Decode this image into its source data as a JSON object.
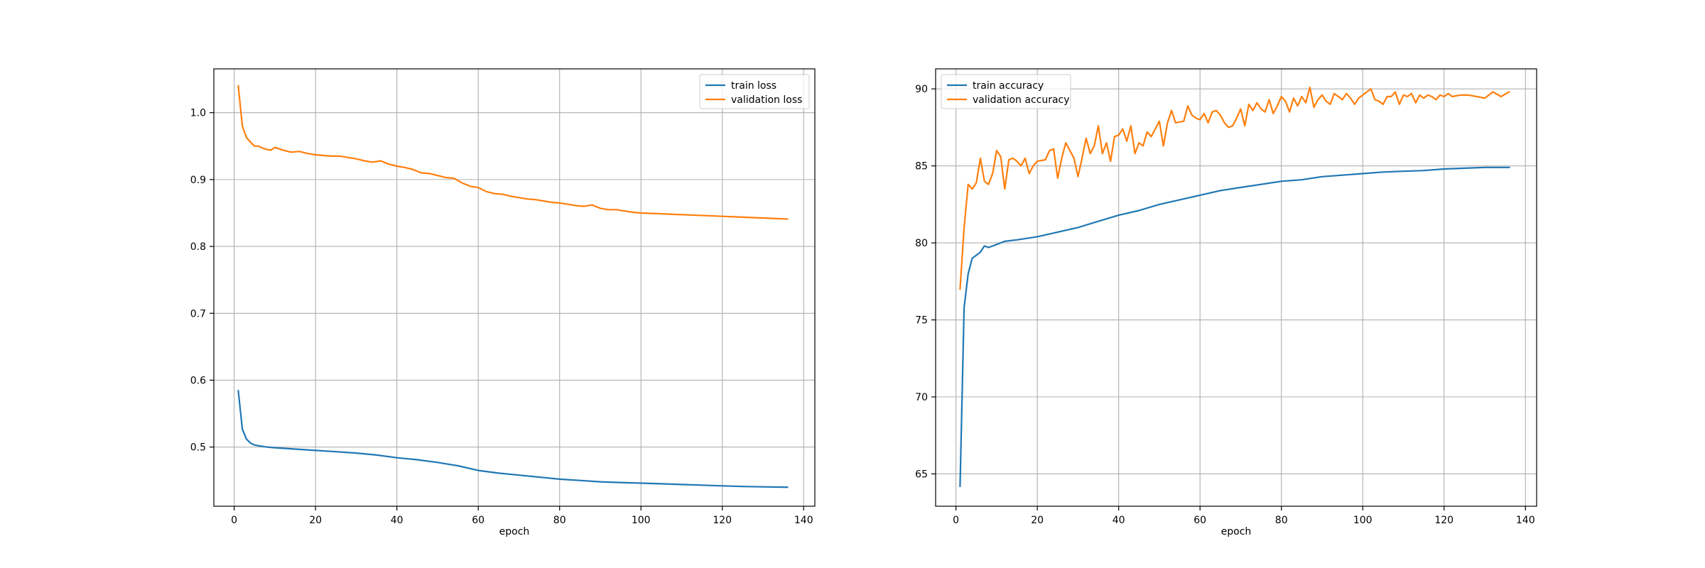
{
  "chart_data": [
    {
      "type": "line",
      "title": "",
      "xlabel": "epoch",
      "ylabel": "",
      "xlim": [
        -5,
        142.75
      ],
      "ylim": [
        0.4115,
        1.0655
      ],
      "xticks": [
        0,
        20,
        40,
        60,
        80,
        100,
        120,
        140
      ],
      "yticks": [
        0.5,
        0.6,
        0.7,
        0.8,
        0.9,
        1.0
      ],
      "xtick_labels": [
        "0",
        "20",
        "40",
        "60",
        "80",
        "100",
        "120",
        "140"
      ],
      "ytick_labels": [
        "0.5",
        "0.6",
        "0.7",
        "0.8",
        "0.9",
        "1.0"
      ],
      "grid": true,
      "legend_loc": "top-right",
      "x": [
        1,
        136
      ],
      "series": [
        {
          "name": "train loss",
          "color": "#1f77b4",
          "points": [
            [
              1,
              0.584
            ],
            [
              2,
              0.527
            ],
            [
              3,
              0.512
            ],
            [
              4,
              0.506
            ],
            [
              5,
              0.503
            ],
            [
              6,
              0.502
            ],
            [
              7,
              0.501
            ],
            [
              8,
              0.5
            ],
            [
              10,
              0.499
            ],
            [
              15,
              0.497
            ],
            [
              20,
              0.495
            ],
            [
              25,
              0.493
            ],
            [
              30,
              0.491
            ],
            [
              35,
              0.488
            ],
            [
              40,
              0.484
            ],
            [
              45,
              0.481
            ],
            [
              50,
              0.477
            ],
            [
              55,
              0.472
            ],
            [
              60,
              0.465
            ],
            [
              65,
              0.461
            ],
            [
              70,
              0.458
            ],
            [
              75,
              0.455
            ],
            [
              80,
              0.452
            ],
            [
              85,
              0.45
            ],
            [
              90,
              0.448
            ],
            [
              95,
              0.447
            ],
            [
              100,
              0.446
            ],
            [
              105,
              0.445
            ],
            [
              110,
              0.444
            ],
            [
              115,
              0.443
            ],
            [
              120,
              0.442
            ],
            [
              125,
              0.441
            ],
            [
              130,
              0.4405
            ],
            [
              136,
              0.44
            ]
          ]
        },
        {
          "name": "validation loss",
          "color": "#ff7f0e",
          "points": [
            [
              1,
              1.04
            ],
            [
              2,
              0.98
            ],
            [
              3,
              0.963
            ],
            [
              4,
              0.956
            ],
            [
              5,
              0.95
            ],
            [
              6,
              0.95
            ],
            [
              7,
              0.947
            ],
            [
              8,
              0.945
            ],
            [
              9,
              0.944
            ],
            [
              10,
              0.948
            ],
            [
              12,
              0.944
            ],
            [
              14,
              0.941
            ],
            [
              16,
              0.942
            ],
            [
              18,
              0.939
            ],
            [
              20,
              0.937
            ],
            [
              22,
              0.936
            ],
            [
              24,
              0.935
            ],
            [
              26,
              0.935
            ],
            [
              28,
              0.933
            ],
            [
              30,
              0.931
            ],
            [
              32,
              0.928
            ],
            [
              34,
              0.926
            ],
            [
              36,
              0.928
            ],
            [
              38,
              0.923
            ],
            [
              40,
              0.92
            ],
            [
              42,
              0.918
            ],
            [
              44,
              0.915
            ],
            [
              46,
              0.91
            ],
            [
              48,
              0.909
            ],
            [
              50,
              0.906
            ],
            [
              52,
              0.903
            ],
            [
              54,
              0.902
            ],
            [
              56,
              0.895
            ],
            [
              58,
              0.89
            ],
            [
              60,
              0.888
            ],
            [
              62,
              0.882
            ],
            [
              64,
              0.879
            ],
            [
              66,
              0.878
            ],
            [
              68,
              0.875
            ],
            [
              70,
              0.873
            ],
            [
              72,
              0.871
            ],
            [
              74,
              0.87
            ],
            [
              76,
              0.868
            ],
            [
              78,
              0.866
            ],
            [
              80,
              0.865
            ],
            [
              82,
              0.863
            ],
            [
              84,
              0.861
            ],
            [
              86,
              0.86
            ],
            [
              88,
              0.862
            ],
            [
              90,
              0.857
            ],
            [
              92,
              0.855
            ],
            [
              94,
              0.855
            ],
            [
              96,
              0.853
            ],
            [
              98,
              0.851
            ],
            [
              100,
              0.85
            ],
            [
              104,
              0.849
            ],
            [
              108,
              0.848
            ],
            [
              112,
              0.847
            ],
            [
              116,
              0.846
            ],
            [
              120,
              0.845
            ],
            [
              124,
              0.844
            ],
            [
              128,
              0.843
            ],
            [
              132,
              0.842
            ],
            [
              136,
              0.841
            ]
          ]
        }
      ]
    },
    {
      "type": "line",
      "title": "",
      "xlabel": "epoch",
      "ylabel": "",
      "xlim": [
        -5,
        142.75
      ],
      "ylim": [
        62.9,
        91.3
      ],
      "xticks": [
        0,
        20,
        40,
        60,
        80,
        100,
        120,
        140
      ],
      "yticks": [
        65,
        70,
        75,
        80,
        85,
        90
      ],
      "xtick_labels": [
        "0",
        "20",
        "40",
        "60",
        "80",
        "100",
        "120",
        "140"
      ],
      "ytick_labels": [
        "65",
        "70",
        "75",
        "80",
        "85",
        "90"
      ],
      "grid": true,
      "legend_loc": "top-left",
      "series": [
        {
          "name": "train accuracy",
          "color": "#1f77b4",
          "points": [
            [
              1,
              64.2
            ],
            [
              2,
              75.8
            ],
            [
              3,
              78.0
            ],
            [
              4,
              79.0
            ],
            [
              5,
              79.2
            ],
            [
              6,
              79.4
            ],
            [
              7,
              79.8
            ],
            [
              8,
              79.7
            ],
            [
              10,
              79.9
            ],
            [
              12,
              80.1
            ],
            [
              15,
              80.2
            ],
            [
              20,
              80.4
            ],
            [
              25,
              80.7
            ],
            [
              30,
              81.0
            ],
            [
              35,
              81.4
            ],
            [
              40,
              81.8
            ],
            [
              45,
              82.1
            ],
            [
              50,
              82.5
            ],
            [
              55,
              82.8
            ],
            [
              60,
              83.1
            ],
            [
              65,
              83.4
            ],
            [
              70,
              83.6
            ],
            [
              75,
              83.8
            ],
            [
              80,
              84.0
            ],
            [
              85,
              84.1
            ],
            [
              90,
              84.3
            ],
            [
              95,
              84.4
            ],
            [
              100,
              84.5
            ],
            [
              105,
              84.6
            ],
            [
              110,
              84.65
            ],
            [
              115,
              84.7
            ],
            [
              120,
              84.8
            ],
            [
              125,
              84.85
            ],
            [
              130,
              84.9
            ],
            [
              136,
              84.9
            ]
          ]
        },
        {
          "name": "validation accuracy",
          "color": "#ff7f0e",
          "points": [
            [
              1,
              77.0
            ],
            [
              2,
              81.0
            ],
            [
              3,
              83.8
            ],
            [
              4,
              83.5
            ],
            [
              5,
              83.9
            ],
            [
              6,
              85.5
            ],
            [
              7,
              84.0
            ],
            [
              8,
              83.8
            ],
            [
              9,
              84.5
            ],
            [
              10,
              86.0
            ],
            [
              11,
              85.6
            ],
            [
              12,
              83.5
            ],
            [
              13,
              85.4
            ],
            [
              14,
              85.5
            ],
            [
              15,
              85.3
            ],
            [
              16,
              85.0
            ],
            [
              17,
              85.5
            ],
            [
              18,
              84.5
            ],
            [
              19,
              85.0
            ],
            [
              20,
              85.3
            ],
            [
              22,
              85.4
            ],
            [
              23,
              86.0
            ],
            [
              24,
              86.1
            ],
            [
              25,
              84.2
            ],
            [
              26,
              85.5
            ],
            [
              27,
              86.5
            ],
            [
              28,
              86.0
            ],
            [
              29,
              85.5
            ],
            [
              30,
              84.3
            ],
            [
              31,
              85.5
            ],
            [
              32,
              86.8
            ],
            [
              33,
              85.8
            ],
            [
              34,
              86.3
            ],
            [
              35,
              87.6
            ],
            [
              36,
              85.8
            ],
            [
              37,
              86.5
            ],
            [
              38,
              85.3
            ],
            [
              39,
              86.9
            ],
            [
              40,
              87.0
            ],
            [
              41,
              87.4
            ],
            [
              42,
              86.6
            ],
            [
              43,
              87.6
            ],
            [
              44,
              85.8
            ],
            [
              45,
              86.5
            ],
            [
              46,
              86.3
            ],
            [
              47,
              87.2
            ],
            [
              48,
              86.9
            ],
            [
              49,
              87.4
            ],
            [
              50,
              87.9
            ],
            [
              51,
              86.3
            ],
            [
              52,
              87.8
            ],
            [
              53,
              88.6
            ],
            [
              54,
              87.8
            ],
            [
              56,
              87.9
            ],
            [
              57,
              88.9
            ],
            [
              58,
              88.3
            ],
            [
              59,
              88.1
            ],
            [
              60,
              88.0
            ],
            [
              61,
              88.4
            ],
            [
              62,
              87.8
            ],
            [
              63,
              88.5
            ],
            [
              64,
              88.6
            ],
            [
              65,
              88.3
            ],
            [
              66,
              87.8
            ],
            [
              67,
              87.5
            ],
            [
              68,
              87.6
            ],
            [
              69,
              88.1
            ],
            [
              70,
              88.7
            ],
            [
              71,
              87.6
            ],
            [
              72,
              89.0
            ],
            [
              73,
              88.6
            ],
            [
              74,
              89.1
            ],
            [
              75,
              88.7
            ],
            [
              76,
              88.5
            ],
            [
              77,
              89.3
            ],
            [
              78,
              88.4
            ],
            [
              79,
              88.9
            ],
            [
              80,
              89.5
            ],
            [
              81,
              89.2
            ],
            [
              82,
              88.5
            ],
            [
              83,
              89.4
            ],
            [
              84,
              88.9
            ],
            [
              85,
              89.5
            ],
            [
              86,
              89.1
            ],
            [
              87,
              90.1
            ],
            [
              88,
              88.8
            ],
            [
              89,
              89.3
            ],
            [
              90,
              89.6
            ],
            [
              91,
              89.2
            ],
            [
              92,
              89.0
            ],
            [
              93,
              89.7
            ],
            [
              94,
              89.5
            ],
            [
              95,
              89.3
            ],
            [
              96,
              89.7
            ],
            [
              97,
              89.4
            ],
            [
              98,
              89.0
            ],
            [
              99,
              89.4
            ],
            [
              100,
              89.6
            ],
            [
              101,
              89.8
            ],
            [
              102,
              90.0
            ],
            [
              103,
              89.3
            ],
            [
              104,
              89.2
            ],
            [
              105,
              89.0
            ],
            [
              106,
              89.5
            ],
            [
              107,
              89.5
            ],
            [
              108,
              89.8
            ],
            [
              109,
              89.0
            ],
            [
              110,
              89.6
            ],
            [
              111,
              89.5
            ],
            [
              112,
              89.7
            ],
            [
              113,
              89.1
            ],
            [
              114,
              89.6
            ],
            [
              115,
              89.4
            ],
            [
              116,
              89.6
            ],
            [
              117,
              89.5
            ],
            [
              118,
              89.3
            ],
            [
              119,
              89.6
            ],
            [
              120,
              89.5
            ],
            [
              121,
              89.7
            ],
            [
              122,
              89.5
            ],
            [
              124,
              89.6
            ],
            [
              126,
              89.6
            ],
            [
              128,
              89.5
            ],
            [
              130,
              89.4
            ],
            [
              132,
              89.8
            ],
            [
              134,
              89.5
            ],
            [
              136,
              89.8
            ]
          ]
        }
      ]
    }
  ]
}
